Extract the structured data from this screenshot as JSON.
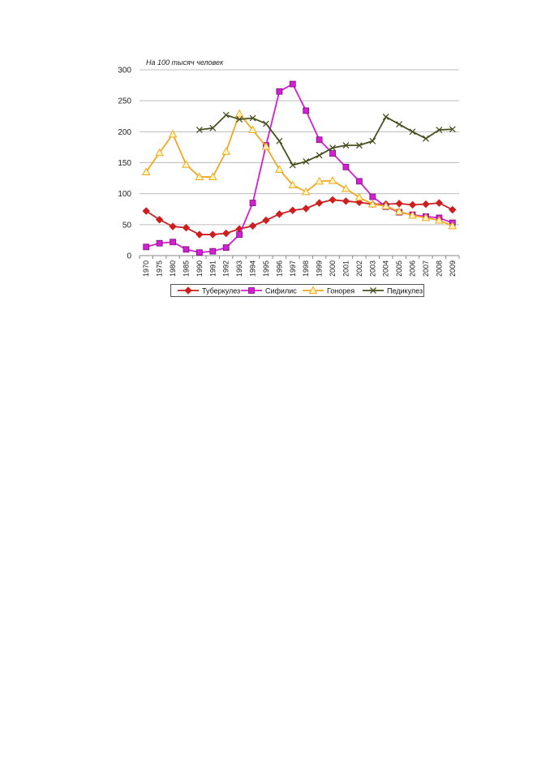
{
  "chart_data": {
    "type": "line",
    "title": "",
    "unit_note": "На 100 тысяч человек",
    "xlabel": "",
    "ylabel": "",
    "ylim": [
      0,
      300
    ],
    "yticks": [
      0,
      50,
      100,
      150,
      200,
      250,
      300
    ],
    "grid": "horizontal",
    "legend_position": "bottom",
    "categories": [
      "1970",
      "1975",
      "1980",
      "1985",
      "1990",
      "1991",
      "1992",
      "1993",
      "1994",
      "1995",
      "1996",
      "1997",
      "1998",
      "1999",
      "2000",
      "2001",
      "2002",
      "2003",
      "2004",
      "2005",
      "2006",
      "2007",
      "2008",
      "2009"
    ],
    "series": [
      {
        "name": "Туберкулез",
        "color": "#cc1f1f",
        "marker": "diamond",
        "values": [
          72,
          58,
          47,
          45,
          34,
          34,
          36,
          43,
          48,
          57,
          67,
          73,
          76,
          85,
          90,
          88,
          86,
          83,
          83,
          84,
          82,
          83,
          85,
          74
        ]
      },
      {
        "name": "Сифилис",
        "color": "#d21fd2",
        "marker": "square",
        "values": [
          14,
          20,
          22,
          10,
          5,
          7,
          13,
          34,
          85,
          178,
          265,
          277,
          234,
          187,
          165,
          143,
          120,
          95,
          79,
          70,
          66,
          63,
          61,
          53
        ]
      },
      {
        "name": "Гонорея",
        "color": "#f0a820",
        "marker": "triangle",
        "values": [
          135,
          166,
          196,
          147,
          127,
          127,
          168,
          229,
          203,
          176,
          139,
          114,
          103,
          120,
          121,
          108,
          94,
          83,
          80,
          71,
          65,
          61,
          57,
          48
        ]
      },
      {
        "name": "Педикулез",
        "color": "#4b5020",
        "marker": "x",
        "values": [
          null,
          null,
          null,
          null,
          203,
          206,
          227,
          220,
          222,
          213,
          185,
          146,
          152,
          162,
          174,
          178,
          178,
          185,
          224,
          212,
          200,
          189,
          203,
          204
        ]
      }
    ]
  }
}
